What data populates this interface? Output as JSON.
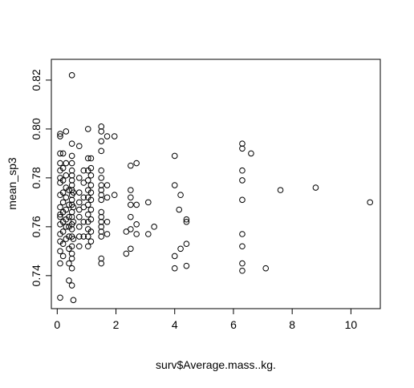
{
  "chart_data": {
    "type": "scatter",
    "title": "",
    "xlabel": "surv$Average.mass..kg.",
    "ylabel": "mean_sp3",
    "xlim": [
      -0.2,
      11.0
    ],
    "ylim": [
      0.7265,
      0.8285
    ],
    "x_ticks": [
      0,
      2,
      4,
      6,
      8,
      10
    ],
    "x_tick_labels": [
      "0",
      "2",
      "4",
      "6",
      "8",
      "10"
    ],
    "y_ticks": [
      0.74,
      0.76,
      0.78,
      0.8,
      0.82
    ],
    "y_tick_labels": [
      "0.74",
      "0.76",
      "0.78",
      "0.80",
      "0.82"
    ],
    "grid": false,
    "legend": "none",
    "marker": "open-circle",
    "points": [
      [
        0.1,
        0.731
      ],
      [
        0.1,
        0.745
      ],
      [
        0.1,
        0.75
      ],
      [
        0.1,
        0.754
      ],
      [
        0.1,
        0.757
      ],
      [
        0.1,
        0.761
      ],
      [
        0.1,
        0.764
      ],
      [
        0.1,
        0.765
      ],
      [
        0.1,
        0.768
      ],
      [
        0.1,
        0.773
      ],
      [
        0.1,
        0.778
      ],
      [
        0.1,
        0.78
      ],
      [
        0.1,
        0.783
      ],
      [
        0.1,
        0.786
      ],
      [
        0.1,
        0.79
      ],
      [
        0.1,
        0.797
      ],
      [
        0.1,
        0.798
      ],
      [
        0.2,
        0.748
      ],
      [
        0.2,
        0.753
      ],
      [
        0.2,
        0.758
      ],
      [
        0.2,
        0.762
      ],
      [
        0.2,
        0.766
      ],
      [
        0.2,
        0.77
      ],
      [
        0.2,
        0.774
      ],
      [
        0.2,
        0.779
      ],
      [
        0.2,
        0.784
      ],
      [
        0.2,
        0.79
      ],
      [
        0.3,
        0.755
      ],
      [
        0.3,
        0.76
      ],
      [
        0.3,
        0.763
      ],
      [
        0.3,
        0.767
      ],
      [
        0.3,
        0.772
      ],
      [
        0.3,
        0.776
      ],
      [
        0.3,
        0.781
      ],
      [
        0.3,
        0.786
      ],
      [
        0.3,
        0.799
      ],
      [
        0.4,
        0.738
      ],
      [
        0.4,
        0.745
      ],
      [
        0.4,
        0.751
      ],
      [
        0.4,
        0.756
      ],
      [
        0.4,
        0.76
      ],
      [
        0.4,
        0.764
      ],
      [
        0.4,
        0.769
      ],
      [
        0.4,
        0.775
      ],
      [
        0.5,
        0.736
      ],
      [
        0.5,
        0.743
      ],
      [
        0.5,
        0.747
      ],
      [
        0.5,
        0.749
      ],
      [
        0.5,
        0.752
      ],
      [
        0.5,
        0.756
      ],
      [
        0.5,
        0.759
      ],
      [
        0.5,
        0.761
      ],
      [
        0.5,
        0.764
      ],
      [
        0.5,
        0.766
      ],
      [
        0.5,
        0.769
      ],
      [
        0.5,
        0.771
      ],
      [
        0.5,
        0.773
      ],
      [
        0.5,
        0.775
      ],
      [
        0.5,
        0.777
      ],
      [
        0.5,
        0.779
      ],
      [
        0.5,
        0.781
      ],
      [
        0.5,
        0.783
      ],
      [
        0.5,
        0.786
      ],
      [
        0.5,
        0.789
      ],
      [
        0.5,
        0.794
      ],
      [
        0.5,
        0.822
      ],
      [
        0.55,
        0.73
      ],
      [
        0.55,
        0.755
      ],
      [
        0.55,
        0.762
      ],
      [
        0.55,
        0.768
      ],
      [
        0.55,
        0.774
      ],
      [
        0.75,
        0.752
      ],
      [
        0.75,
        0.756
      ],
      [
        0.75,
        0.76
      ],
      [
        0.75,
        0.764
      ],
      [
        0.75,
        0.767
      ],
      [
        0.75,
        0.77
      ],
      [
        0.75,
        0.774
      ],
      [
        0.75,
        0.78
      ],
      [
        0.75,
        0.793
      ],
      [
        0.9,
        0.756
      ],
      [
        0.9,
        0.762
      ],
      [
        0.9,
        0.768
      ],
      [
        0.9,
        0.772
      ],
      [
        0.9,
        0.778
      ],
      [
        0.9,
        0.783
      ],
      [
        1.05,
        0.752
      ],
      [
        1.05,
        0.756
      ],
      [
        1.05,
        0.759
      ],
      [
        1.05,
        0.762
      ],
      [
        1.05,
        0.765
      ],
      [
        1.05,
        0.769
      ],
      [
        1.05,
        0.772
      ],
      [
        1.05,
        0.775
      ],
      [
        1.05,
        0.779
      ],
      [
        1.05,
        0.783
      ],
      [
        1.05,
        0.788
      ],
      [
        1.05,
        0.8
      ],
      [
        1.15,
        0.754
      ],
      [
        1.15,
        0.758
      ],
      [
        1.15,
        0.763
      ],
      [
        1.15,
        0.767
      ],
      [
        1.15,
        0.771
      ],
      [
        1.15,
        0.774
      ],
      [
        1.15,
        0.777
      ],
      [
        1.15,
        0.781
      ],
      [
        1.15,
        0.784
      ],
      [
        1.15,
        0.788
      ],
      [
        1.5,
        0.745
      ],
      [
        1.5,
        0.747
      ],
      [
        1.5,
        0.756
      ],
      [
        1.5,
        0.758
      ],
      [
        1.5,
        0.76
      ],
      [
        1.5,
        0.762
      ],
      [
        1.5,
        0.764
      ],
      [
        1.5,
        0.766
      ],
      [
        1.5,
        0.771
      ],
      [
        1.5,
        0.773
      ],
      [
        1.5,
        0.775
      ],
      [
        1.5,
        0.777
      ],
      [
        1.5,
        0.78
      ],
      [
        1.5,
        0.783
      ],
      [
        1.5,
        0.791
      ],
      [
        1.5,
        0.795
      ],
      [
        1.5,
        0.799
      ],
      [
        1.5,
        0.801
      ],
      [
        1.7,
        0.757
      ],
      [
        1.7,
        0.762
      ],
      [
        1.7,
        0.772
      ],
      [
        1.7,
        0.777
      ],
      [
        1.7,
        0.797
      ],
      [
        1.95,
        0.773
      ],
      [
        1.95,
        0.797
      ],
      [
        2.35,
        0.749
      ],
      [
        2.35,
        0.758
      ],
      [
        2.5,
        0.751
      ],
      [
        2.5,
        0.759
      ],
      [
        2.5,
        0.764
      ],
      [
        2.5,
        0.769
      ],
      [
        2.5,
        0.772
      ],
      [
        2.5,
        0.775
      ],
      [
        2.5,
        0.785
      ],
      [
        2.7,
        0.757
      ],
      [
        2.7,
        0.761
      ],
      [
        2.7,
        0.769
      ],
      [
        2.7,
        0.786
      ],
      [
        3.1,
        0.757
      ],
      [
        3.1,
        0.77
      ],
      [
        3.3,
        0.76
      ],
      [
        4.0,
        0.743
      ],
      [
        4.0,
        0.748
      ],
      [
        4.0,
        0.777
      ],
      [
        4.0,
        0.789
      ],
      [
        4.15,
        0.767
      ],
      [
        4.2,
        0.751
      ],
      [
        4.2,
        0.773
      ],
      [
        4.4,
        0.744
      ],
      [
        4.4,
        0.753
      ],
      [
        4.4,
        0.762
      ],
      [
        4.4,
        0.763
      ],
      [
        6.3,
        0.742
      ],
      [
        6.3,
        0.745
      ],
      [
        6.3,
        0.752
      ],
      [
        6.3,
        0.757
      ],
      [
        6.3,
        0.771
      ],
      [
        6.3,
        0.779
      ],
      [
        6.3,
        0.783
      ],
      [
        6.3,
        0.792
      ],
      [
        6.3,
        0.794
      ],
      [
        6.6,
        0.79
      ],
      [
        7.1,
        0.743
      ],
      [
        7.6,
        0.775
      ],
      [
        8.8,
        0.776
      ],
      [
        10.65,
        0.77
      ]
    ]
  }
}
